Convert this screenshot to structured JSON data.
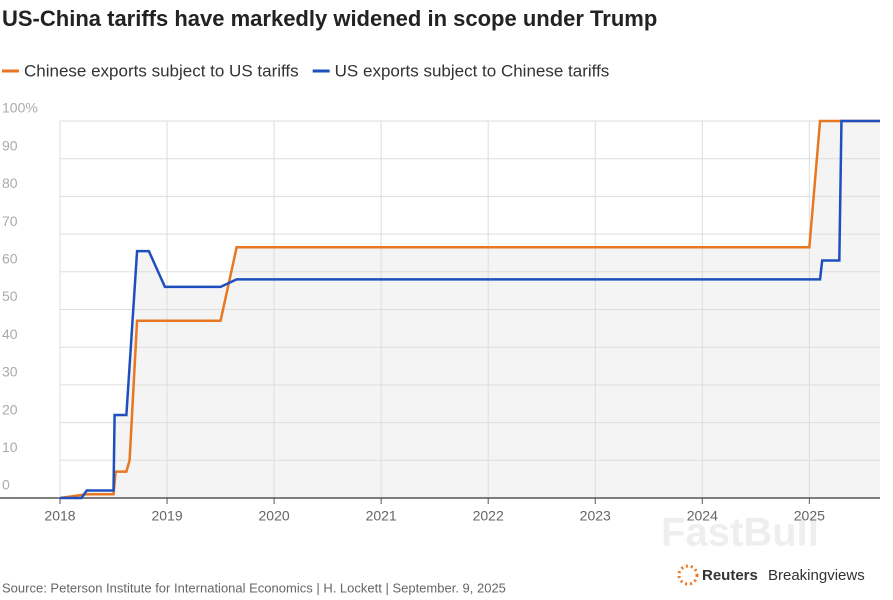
{
  "chart_data": {
    "type": "line",
    "title": "US-China tariffs have markedly widened in scope under Trump",
    "source": "Source: Peterson Institute for International Economics | H. Lockett | September. 9, 2025",
    "logo": [
      "Reuters",
      "Breakingviews"
    ],
    "watermark": "FastBull",
    "xlim": [
      2018,
      2025.66
    ],
    "xticks": [
      2018,
      2019,
      2020,
      2021,
      2022,
      2023,
      2024,
      2025
    ],
    "ylim": [
      0,
      100
    ],
    "yticks": [
      0,
      10,
      20,
      30,
      40,
      50,
      60,
      70,
      80,
      90,
      {
        "value": 100,
        "label": "100%"
      }
    ],
    "grid": true,
    "series": [
      {
        "name": "Chinese exports subject to US tariffs",
        "color": "#e87722",
        "x": [
          2018.0,
          2018.25,
          2018.5,
          2018.52,
          2018.62,
          2018.65,
          2018.72,
          2019.5,
          2019.65,
          2025.0,
          2025.1,
          2025.66
        ],
        "values": [
          0,
          1,
          1,
          7,
          7,
          10,
          47,
          47,
          66.5,
          66.5,
          100,
          100
        ]
      },
      {
        "name": "US exports subject to Chinese tariffs",
        "color": "#1f4fbf",
        "x": [
          2018.0,
          2018.2,
          2018.25,
          2018.5,
          2018.51,
          2018.62,
          2018.72,
          2018.83,
          2018.98,
          2019.5,
          2019.65,
          2025.1,
          2025.12,
          2025.28,
          2025.3,
          2025.66
        ],
        "values": [
          0,
          0,
          2,
          2,
          22,
          22,
          65.5,
          65.5,
          56,
          56,
          58,
          58,
          63,
          63,
          100,
          100
        ]
      }
    ]
  }
}
